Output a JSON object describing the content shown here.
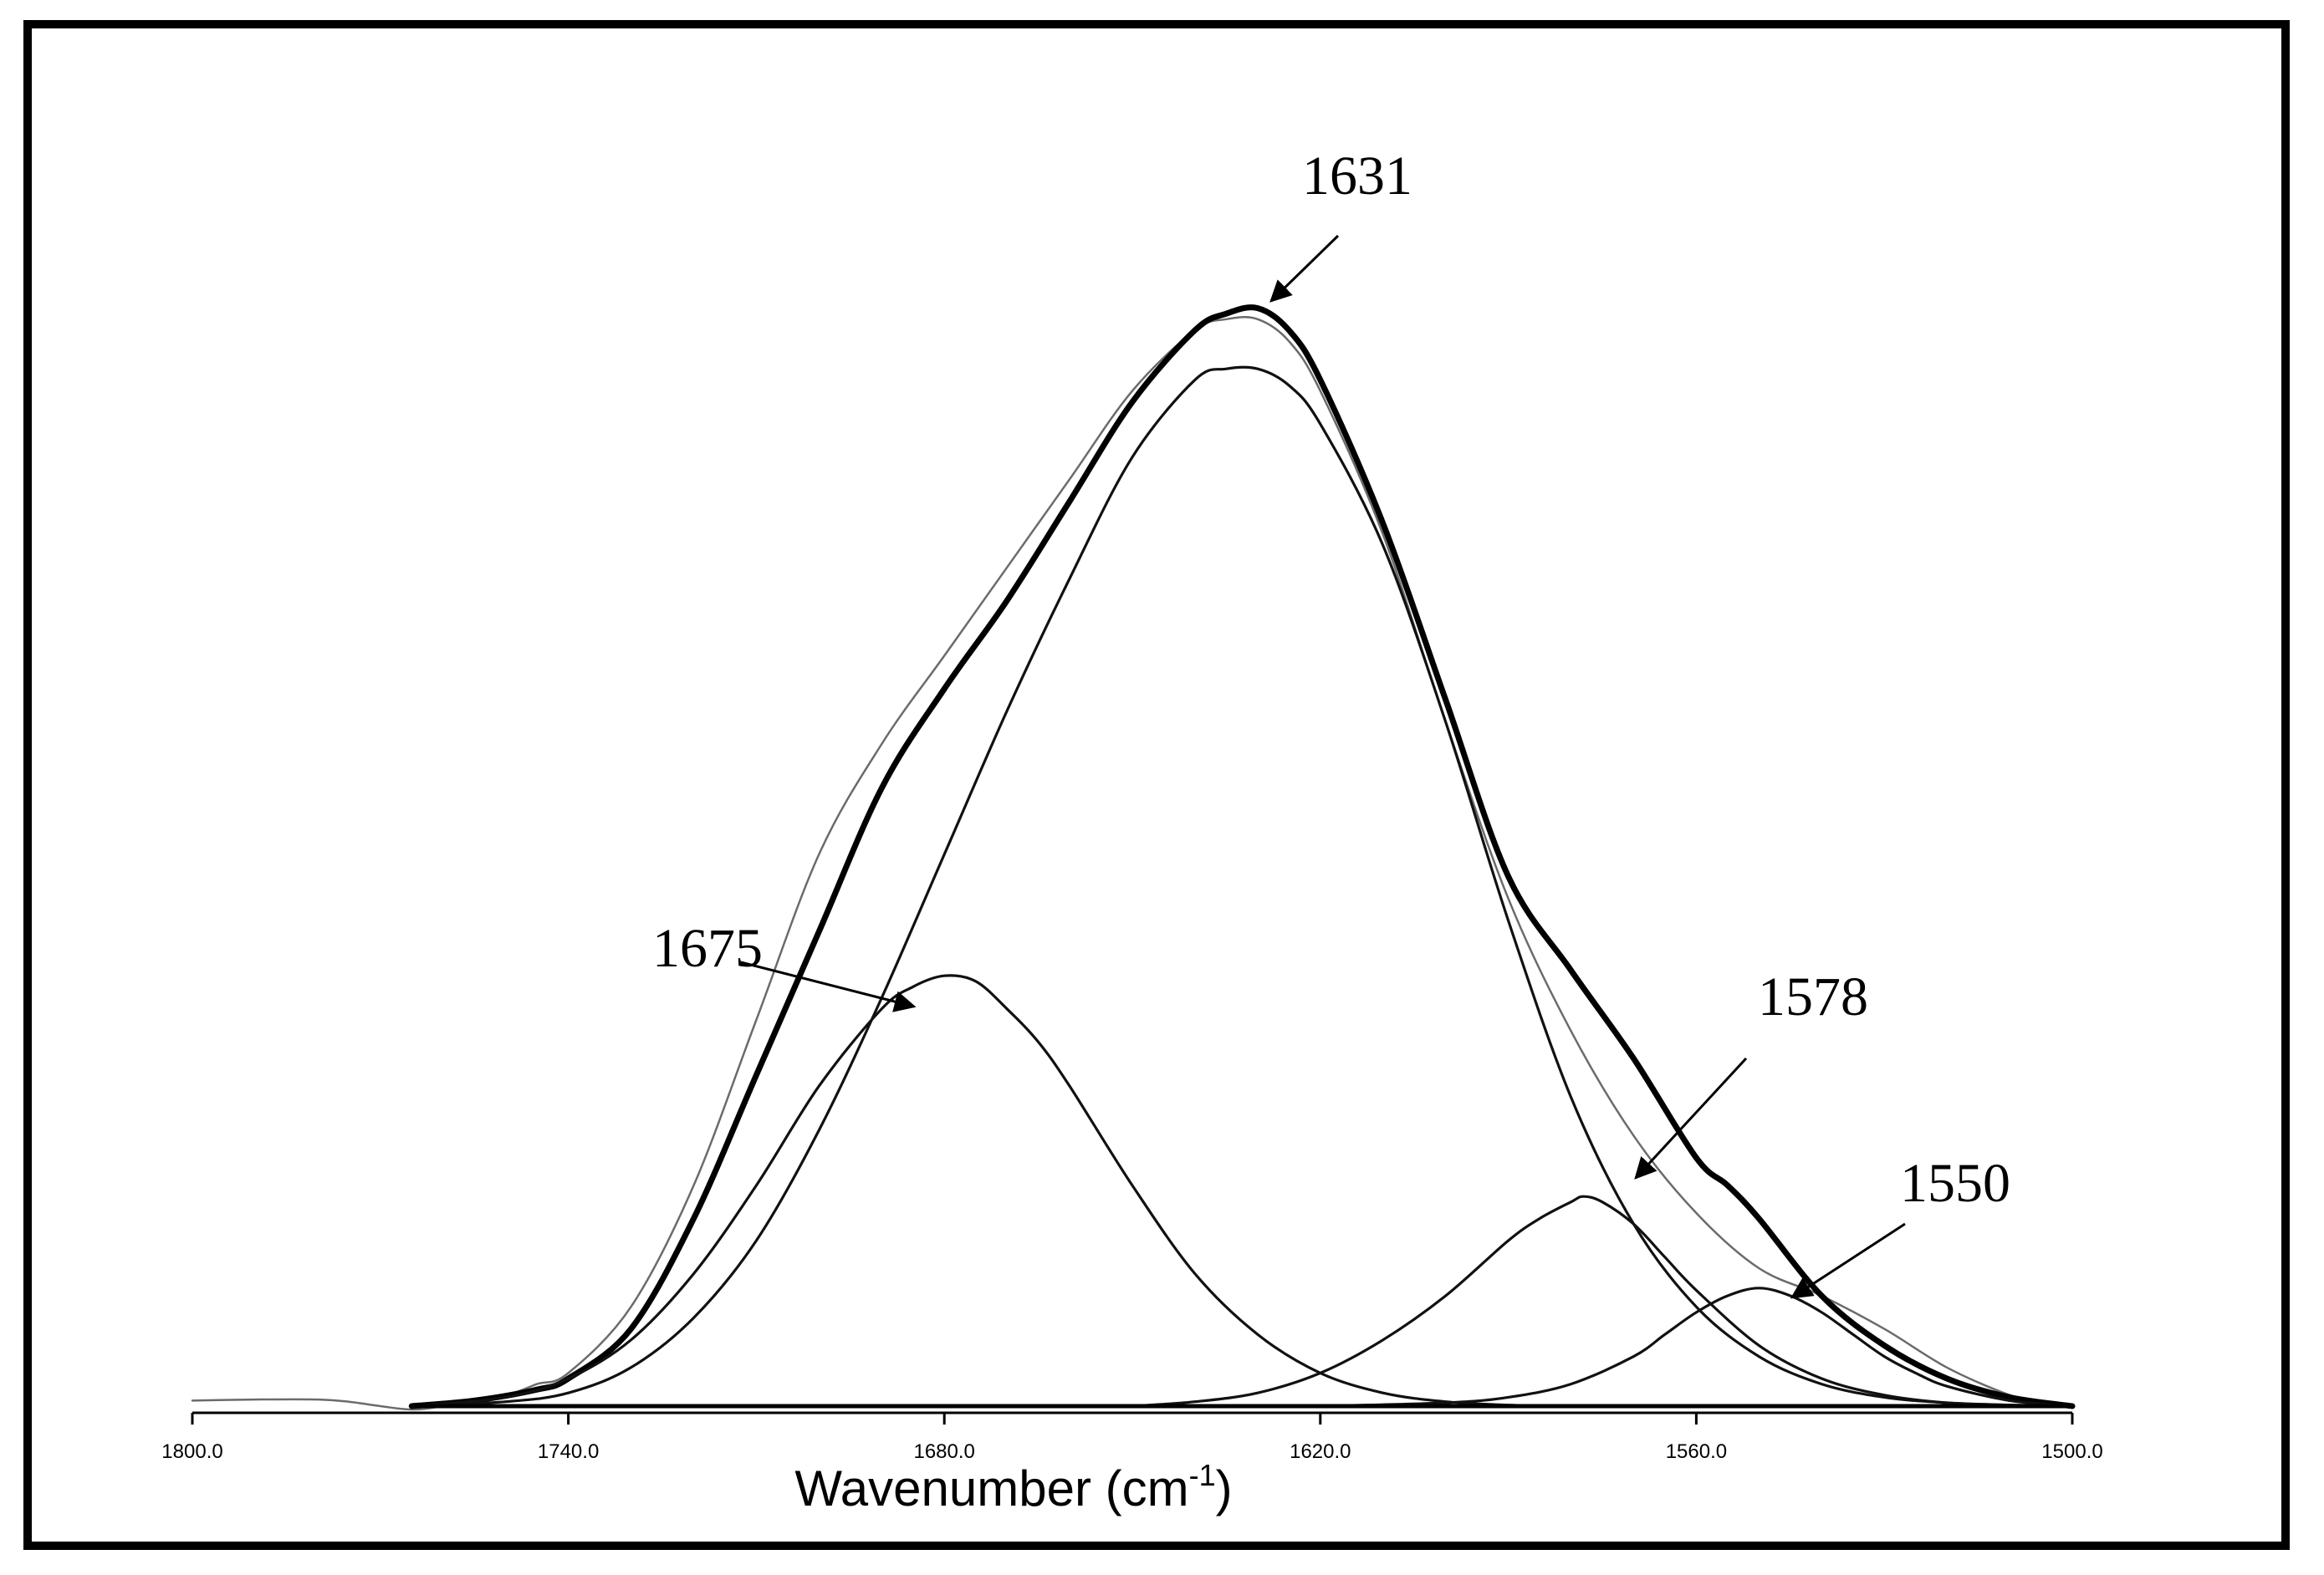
{
  "chart_data": {
    "type": "line",
    "xlabel": "Wavenumber (cm",
    "xlabel_sup": "-1",
    "xlabel_close": ")",
    "ylabel": "",
    "xlim": [
      1800.0,
      1500.0
    ],
    "x_reversed": true,
    "ylim": [
      0,
      1.0
    ],
    "grid": false,
    "x_ticks": [
      "1800.0",
      "1740.0",
      "1680.0",
      "1620.0",
      "1560.0",
      "1500.0"
    ],
    "annotations": [
      {
        "text": "1631",
        "points_to": 1631
      },
      {
        "text": "1675",
        "points_to": 1675
      },
      {
        "text": "1578",
        "points_to": 1578
      },
      {
        "text": "1550",
        "points_to": 1550
      }
    ],
    "series": [
      {
        "role": "measured",
        "style": "thin",
        "x": [
          1800,
          1790,
          1780,
          1775,
          1770,
          1765,
          1760,
          1750,
          1745,
          1740,
          1730,
          1720,
          1710,
          1700,
          1690,
          1680,
          1670,
          1660,
          1650,
          1640,
          1635,
          1630,
          1625,
          1620,
          1610,
          1600,
          1590,
          1580,
          1570,
          1560,
          1550,
          1540,
          1530,
          1520,
          1510,
          1505,
          1500
        ],
        "y": [
          0.005,
          0.006,
          0.006,
          0.004,
          0.0,
          -0.003,
          0.0,
          0.01,
          0.02,
          0.03,
          0.09,
          0.2,
          0.35,
          0.5,
          0.6,
          0.68,
          0.76,
          0.84,
          0.92,
          0.975,
          0.985,
          0.985,
          0.965,
          0.92,
          0.79,
          0.62,
          0.46,
          0.34,
          0.245,
          0.175,
          0.125,
          0.1,
          0.07,
          0.035,
          0.01,
          0.004,
          0.0
        ]
      },
      {
        "role": "fit-sum",
        "style": "thick",
        "x": [
          1765,
          1755,
          1745,
          1740,
          1730,
          1720,
          1710,
          1700,
          1690,
          1680,
          1670,
          1660,
          1650,
          1640,
          1635,
          1630,
          1625,
          1620,
          1610,
          1600,
          1590,
          1580,
          1570,
          1560,
          1555,
          1550,
          1540,
          1530,
          1520,
          1510,
          1500
        ],
        "y": [
          0.0,
          0.005,
          0.015,
          0.025,
          0.07,
          0.17,
          0.3,
          0.43,
          0.56,
          0.65,
          0.73,
          0.82,
          0.91,
          0.975,
          0.99,
          0.995,
          0.975,
          0.93,
          0.8,
          0.64,
          0.48,
          0.395,
          0.315,
          0.225,
          0.2,
          0.17,
          0.1,
          0.055,
          0.025,
          0.008,
          0.0
        ]
      },
      {
        "role": "component",
        "peak": 1631,
        "x": [
          1765,
          1750,
          1740,
          1730,
          1720,
          1710,
          1700,
          1690,
          1680,
          1670,
          1660,
          1650,
          1640,
          1635,
          1630,
          1625,
          1620,
          1610,
          1600,
          1590,
          1580,
          1570,
          1560,
          1550,
          1540,
          1530,
          1520,
          1510,
          1500
        ],
        "y": [
          0.0,
          0.004,
          0.012,
          0.035,
          0.08,
          0.15,
          0.25,
          0.37,
          0.5,
          0.63,
          0.75,
          0.86,
          0.93,
          0.94,
          0.94,
          0.925,
          0.89,
          0.78,
          0.62,
          0.44,
          0.28,
          0.165,
          0.09,
          0.045,
          0.02,
          0.008,
          0.003,
          0.001,
          0.0
        ]
      },
      {
        "role": "component",
        "peak": 1675,
        "x": [
          1765,
          1750,
          1740,
          1730,
          1720,
          1710,
          1700,
          1690,
          1685,
          1680,
          1675,
          1670,
          1665,
          1660,
          1650,
          1640,
          1630,
          1620,
          1610,
          1600,
          1590,
          1580
        ],
        "y": [
          0.0,
          0.008,
          0.025,
          0.06,
          0.12,
          0.2,
          0.29,
          0.36,
          0.38,
          0.39,
          0.385,
          0.36,
          0.33,
          0.29,
          0.2,
          0.12,
          0.065,
          0.03,
          0.012,
          0.004,
          0.001,
          0.0
        ]
      },
      {
        "role": "component",
        "peak": 1578,
        "x": [
          1650,
          1640,
          1630,
          1620,
          1610,
          1600,
          1590,
          1585,
          1580,
          1578,
          1575,
          1570,
          1565,
          1560,
          1550,
          1540,
          1530,
          1520,
          1510,
          1500
        ],
        "y": [
          0.0,
          0.004,
          0.012,
          0.03,
          0.06,
          0.1,
          0.15,
          0.17,
          0.185,
          0.19,
          0.185,
          0.165,
          0.135,
          0.105,
          0.055,
          0.025,
          0.01,
          0.003,
          0.001,
          0.0
        ]
      },
      {
        "role": "component",
        "peak": 1550,
        "x": [
          1620,
          1600,
          1590,
          1580,
          1570,
          1565,
          1560,
          1555,
          1550,
          1545,
          1540,
          1535,
          1530,
          1525,
          1520,
          1510,
          1500
        ],
        "y": [
          0.0,
          0.003,
          0.008,
          0.02,
          0.045,
          0.065,
          0.085,
          0.1,
          0.107,
          0.1,
          0.085,
          0.065,
          0.045,
          0.03,
          0.018,
          0.005,
          0.0
        ]
      },
      {
        "role": "baseline",
        "x": [
          1765,
          1500
        ],
        "y": [
          0.0,
          0.0
        ]
      }
    ]
  }
}
